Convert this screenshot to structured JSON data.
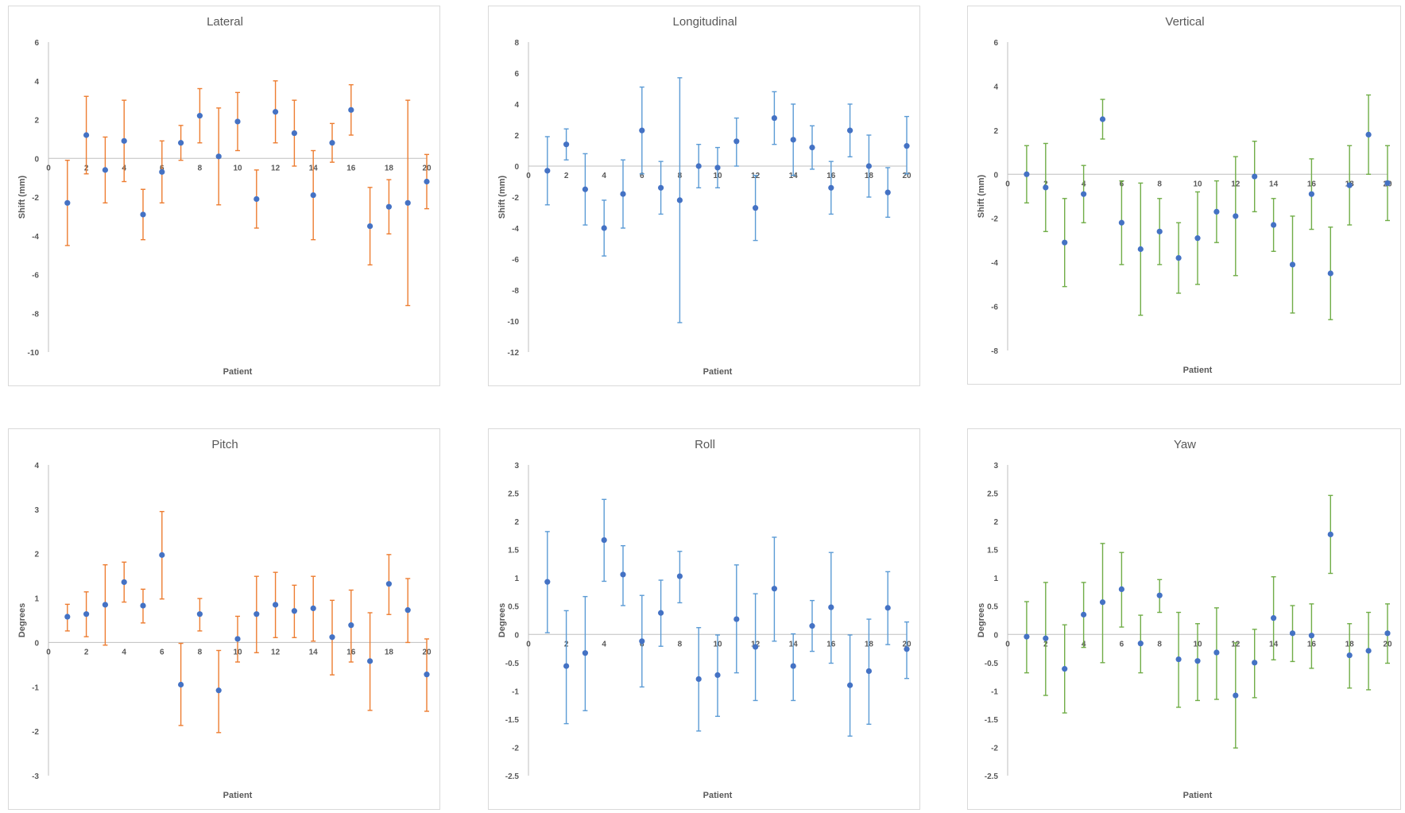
{
  "colors": {
    "point": "#4472C4",
    "orange": "#ED7D31",
    "blue": "#5B9BD5",
    "green": "#70AD47",
    "axis": "#BFBFBF"
  },
  "chart_data": [
    {
      "id": "lateral",
      "type": "scatter",
      "title": "Lateral",
      "xlabel": "Patient",
      "ylabel": "Shift (mm)",
      "error_color": "orange",
      "xlim": [
        0,
        20
      ],
      "ylim": [
        -10,
        6
      ],
      "xticks": [
        0,
        2,
        4,
        6,
        8,
        10,
        12,
        14,
        16,
        18,
        20
      ],
      "yticks": [
        -10,
        -8,
        -6,
        -4,
        -2,
        0,
        2,
        4,
        6
      ],
      "grid": false,
      "x": [
        1,
        2,
        3,
        4,
        5,
        6,
        7,
        8,
        9,
        10,
        11,
        12,
        13,
        14,
        15,
        16,
        17,
        18,
        19,
        20
      ],
      "y": [
        -2.3,
        1.2,
        -0.6,
        0.9,
        -2.9,
        -0.7,
        0.8,
        2.2,
        0.1,
        1.9,
        -2.1,
        2.4,
        1.3,
        -1.9,
        0.8,
        2.5,
        -3.5,
        -2.5,
        -2.3,
        -1.2
      ],
      "err_low": [
        -4.5,
        -0.8,
        -2.3,
        -1.2,
        -4.2,
        -2.3,
        -0.1,
        0.8,
        -2.4,
        0.4,
        -3.6,
        0.8,
        -0.4,
        -4.2,
        -0.2,
        1.2,
        -5.5,
        -3.9,
        -7.6,
        -2.6
      ],
      "err_high": [
        -0.1,
        3.2,
        1.1,
        3.0,
        -1.6,
        0.9,
        1.7,
        3.6,
        2.6,
        3.4,
        -0.6,
        4.0,
        3.0,
        0.4,
        1.8,
        3.8,
        -1.5,
        -1.1,
        3.0,
        0.2
      ]
    },
    {
      "id": "longitudinal",
      "type": "scatter",
      "title": "Longitudinal",
      "xlabel": "Patient",
      "ylabel": "Shift (mm)",
      "error_color": "blue",
      "xlim": [
        0,
        20
      ],
      "ylim": [
        -12,
        8
      ],
      "xticks": [
        0,
        2,
        4,
        6,
        8,
        10,
        12,
        14,
        16,
        18,
        20
      ],
      "yticks": [
        -12,
        -10,
        -8,
        -6,
        -4,
        -2,
        0,
        2,
        4,
        6,
        8
      ],
      "grid": false,
      "x": [
        1,
        2,
        3,
        4,
        5,
        6,
        7,
        8,
        9,
        10,
        11,
        12,
        13,
        14,
        15,
        16,
        17,
        18,
        19,
        20
      ],
      "y": [
        -0.3,
        1.4,
        -1.5,
        -4.0,
        -1.8,
        2.3,
        -1.4,
        -2.2,
        0.0,
        -0.1,
        1.6,
        -2.7,
        3.1,
        1.7,
        1.2,
        -1.4,
        2.3,
        0.0,
        -1.7,
        1.3
      ],
      "err_low": [
        -2.5,
        0.4,
        -3.8,
        -5.8,
        -4.0,
        -0.5,
        -3.1,
        -10.1,
        -1.4,
        -1.4,
        0.0,
        -4.8,
        1.4,
        -0.6,
        -0.2,
        -3.1,
        0.6,
        -2.0,
        -3.3,
        -0.5
      ],
      "err_high": [
        1.9,
        2.4,
        0.8,
        -2.2,
        0.4,
        5.1,
        0.3,
        5.7,
        1.4,
        1.2,
        3.1,
        -0.6,
        4.8,
        4.0,
        2.6,
        0.3,
        4.0,
        2.0,
        -0.1,
        3.2
      ]
    },
    {
      "id": "vertical",
      "type": "scatter",
      "title": "Vertical",
      "xlabel": "Patient",
      "ylabel": "Shift (mm)",
      "error_color": "green",
      "xlim": [
        0,
        20
      ],
      "ylim": [
        -8,
        6
      ],
      "xticks": [
        0,
        2,
        4,
        6,
        8,
        10,
        12,
        14,
        16,
        18,
        20
      ],
      "yticks": [
        -8,
        -6,
        -4,
        -2,
        0,
        2,
        4,
        6
      ],
      "grid": false,
      "x": [
        1,
        2,
        3,
        4,
        5,
        6,
        7,
        8,
        9,
        10,
        11,
        12,
        13,
        14,
        15,
        16,
        17,
        18,
        19,
        20
      ],
      "y": [
        0.0,
        -0.6,
        -3.1,
        -0.9,
        2.5,
        -2.2,
        -3.4,
        -2.6,
        -3.8,
        -2.9,
        -1.7,
        -1.9,
        -0.1,
        -2.3,
        -4.1,
        -0.9,
        -4.5,
        -0.5,
        1.8,
        -0.4
      ],
      "err_low": [
        -1.3,
        -2.6,
        -5.1,
        -2.2,
        1.6,
        -4.1,
        -6.4,
        -4.1,
        -5.4,
        -5.0,
        -3.1,
        -4.6,
        -1.7,
        -3.5,
        -6.3,
        -2.5,
        -6.6,
        -2.3,
        0.0,
        -2.1
      ],
      "err_high": [
        1.3,
        1.4,
        -1.1,
        0.4,
        3.4,
        -0.3,
        -0.4,
        -1.1,
        -2.2,
        -0.8,
        -0.3,
        0.8,
        1.5,
        -1.1,
        -1.9,
        0.7,
        -2.4,
        1.3,
        3.6,
        1.3
      ]
    },
    {
      "id": "pitch",
      "type": "scatter",
      "title": "Pitch",
      "xlabel": "Patient",
      "ylabel": "Degrees",
      "error_color": "orange",
      "xlim": [
        0,
        20
      ],
      "ylim": [
        -3,
        4
      ],
      "xticks": [
        0,
        2,
        4,
        6,
        8,
        10,
        12,
        14,
        16,
        18,
        20
      ],
      "yticks": [
        -3,
        -2,
        -1,
        0,
        1,
        2,
        3,
        4
      ],
      "grid": false,
      "x": [
        1,
        2,
        3,
        4,
        5,
        6,
        7,
        8,
        9,
        10,
        11,
        12,
        13,
        14,
        15,
        16,
        17,
        18,
        19,
        20
      ],
      "y": [
        0.58,
        0.64,
        0.85,
        1.36,
        0.83,
        1.97,
        -0.95,
        0.64,
        -1.08,
        0.08,
        0.64,
        0.85,
        0.71,
        0.77,
        0.12,
        0.39,
        -0.42,
        1.32,
        0.73,
        -0.72
      ],
      "err_low": [
        0.26,
        0.13,
        -0.06,
        0.91,
        0.44,
        0.98,
        -1.87,
        0.26,
        -2.03,
        -0.44,
        -0.23,
        0.11,
        0.11,
        0.03,
        -0.73,
        -0.44,
        -1.53,
        0.63,
        0.0,
        -1.55
      ],
      "err_high": [
        0.86,
        1.14,
        1.75,
        1.81,
        1.2,
        2.95,
        -0.02,
        0.99,
        -0.18,
        0.59,
        1.49,
        1.58,
        1.29,
        1.49,
        0.95,
        1.18,
        0.67,
        1.98,
        1.44,
        0.08
      ]
    },
    {
      "id": "roll",
      "type": "scatter",
      "title": "Roll",
      "xlabel": "Patient",
      "ylabel": "Degrees",
      "error_color": "blue",
      "xlim": [
        0,
        20
      ],
      "ylim": [
        -2.5,
        3
      ],
      "xticks": [
        0,
        2,
        4,
        6,
        8,
        10,
        12,
        14,
        16,
        18,
        20
      ],
      "yticks": [
        -2.5,
        -2,
        -1.5,
        -1,
        -0.5,
        0,
        0.5,
        1,
        1.5,
        2,
        2.5,
        3
      ],
      "grid": false,
      "x": [
        1,
        2,
        3,
        4,
        5,
        6,
        7,
        8,
        9,
        10,
        11,
        12,
        13,
        14,
        15,
        16,
        17,
        18,
        19,
        20
      ],
      "y": [
        0.93,
        -0.56,
        -0.33,
        1.67,
        1.06,
        -0.12,
        0.38,
        1.03,
        -0.79,
        -0.72,
        0.27,
        -0.22,
        0.81,
        -0.56,
        0.15,
        0.48,
        -0.9,
        -0.65,
        0.47,
        -0.26
      ],
      "err_low": [
        0.03,
        -1.58,
        -1.35,
        0.94,
        0.51,
        -0.93,
        -0.21,
        0.56,
        -1.71,
        -1.45,
        -0.68,
        -1.17,
        -0.12,
        -1.17,
        -0.3,
        -0.51,
        -1.8,
        -1.59,
        -0.18,
        -0.78
      ],
      "err_high": [
        1.82,
        0.42,
        0.67,
        2.39,
        1.57,
        0.69,
        0.96,
        1.47,
        0.12,
        -0.01,
        1.23,
        0.72,
        1.72,
        0.01,
        0.6,
        1.45,
        -0.01,
        0.27,
        1.11,
        0.22
      ]
    },
    {
      "id": "yaw",
      "type": "scatter",
      "title": "Yaw",
      "xlabel": "Patient",
      "ylabel": "Degrees",
      "error_color": "green",
      "xlim": [
        0,
        20
      ],
      "ylim": [
        -2.5,
        3
      ],
      "xticks": [
        0,
        2,
        4,
        6,
        8,
        10,
        12,
        14,
        16,
        18,
        20
      ],
      "yticks": [
        -2.5,
        -2,
        -1.5,
        -1,
        -0.5,
        0,
        0.5,
        1,
        1.5,
        2,
        2.5,
        3
      ],
      "grid": false,
      "x": [
        1,
        2,
        3,
        4,
        5,
        6,
        7,
        8,
        9,
        10,
        11,
        12,
        13,
        14,
        15,
        16,
        17,
        18,
        19,
        20
      ],
      "y": [
        -0.04,
        -0.07,
        -0.61,
        0.35,
        0.57,
        0.8,
        -0.16,
        0.69,
        -0.44,
        -0.47,
        -0.32,
        -1.08,
        -0.5,
        0.29,
        0.02,
        -0.02,
        1.77,
        -0.37,
        -0.29,
        0.02
      ],
      "err_low": [
        -0.68,
        -1.08,
        -1.39,
        -0.23,
        -0.5,
        0.13,
        -0.68,
        0.39,
        -1.29,
        -1.17,
        -1.15,
        -2.01,
        -1.12,
        -0.45,
        -0.48,
        -0.6,
        1.08,
        -0.95,
        -0.98,
        -0.51
      ],
      "err_high": [
        0.58,
        0.92,
        0.17,
        0.92,
        1.61,
        1.45,
        0.34,
        0.97,
        0.39,
        0.19,
        0.47,
        -0.15,
        0.09,
        1.02,
        0.51,
        0.54,
        2.46,
        0.19,
        0.39,
        0.54
      ]
    }
  ]
}
